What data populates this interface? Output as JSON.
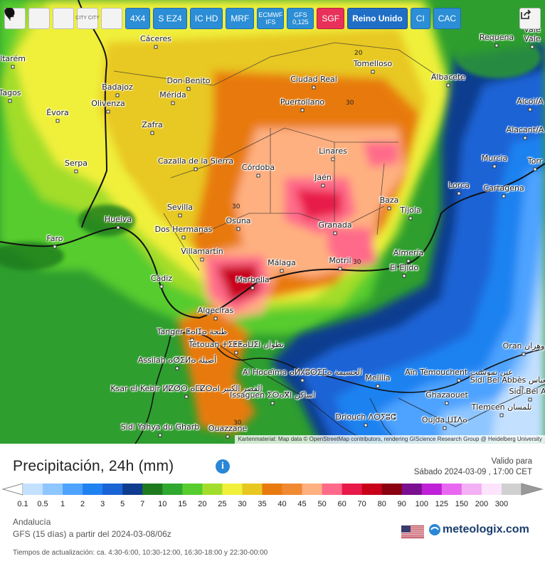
{
  "toolbar": {
    "buttons": [
      "4X4",
      "S EZ4",
      "IC HD",
      "MRF",
      "ECMWF IFS",
      "GFS 0,125",
      "SGF",
      "Reino Unido",
      "CI",
      "CAC"
    ],
    "city_button": "CITY CITY"
  },
  "map": {
    "cities": [
      {
        "name": "Cáceres"
      },
      {
        "name": "Requena"
      },
      {
        "name": "Vale"
      },
      {
        "name": "Vale"
      },
      {
        "name": "Tomelloso"
      },
      {
        "name": "Ciudad Real"
      },
      {
        "name": "Albacete"
      },
      {
        "name": "ltarém"
      },
      {
        "name": "Badajoz"
      },
      {
        "name": "Don Benito"
      },
      {
        "name": "Olivenza"
      },
      {
        "name": "Mérida"
      },
      {
        "name": "Puertollano"
      },
      {
        "name": "Alcoi/A"
      },
      {
        "name": "Évora"
      },
      {
        "name": "Zafra"
      },
      {
        "name": "Alacant/A"
      },
      {
        "name": "Linares"
      },
      {
        "name": "Serpa"
      },
      {
        "name": "Cazalla de la Sierra"
      },
      {
        "name": "Córdoba"
      },
      {
        "name": "Murcia"
      },
      {
        "name": "Torr"
      },
      {
        "name": "Jaén"
      },
      {
        "name": "Lorca"
      },
      {
        "name": "Cartagena"
      },
      {
        "name": "Baza"
      },
      {
        "name": "Sevilla"
      },
      {
        "name": "Tíjola"
      },
      {
        "name": "Huelva"
      },
      {
        "name": "Osuna"
      },
      {
        "name": "Dos Hermanas"
      },
      {
        "name": "Granada"
      },
      {
        "name": "Faro"
      },
      {
        "name": "Almería"
      },
      {
        "name": "Villamartín"
      },
      {
        "name": "Motril"
      },
      {
        "name": "Málaga"
      },
      {
        "name": "El Ejido"
      },
      {
        "name": "Cádiz"
      },
      {
        "name": "Marbella"
      },
      {
        "name": "Algeciras"
      },
      {
        "name": "Tanger ⵟⴰⵏⵊⴰ طنجة"
      },
      {
        "name": "Tétouan ⵜⵉⵟⵟⴰⵡⵉⵏ تطوان"
      },
      {
        "name": "Assilah ⴰⵚⵉⵍⴰ أصيلة"
      },
      {
        "name": "Oran وهران"
      },
      {
        "name": "Al Hoceïma ⴰⵍⵃⵓⵙⵉⵎⴰ الحسيمة"
      },
      {
        "name": "Aïn Témouchent عين تموشنت"
      },
      {
        "name": "Melilla"
      },
      {
        "name": "Sidi Bel Abbès سيدي بلعباس"
      },
      {
        "name": "Ksar el-Kebir ⵍⵇⵚⵔ ⴰⵎⵇⵔⴰⵏ القصر الكبير"
      },
      {
        "name": "Issaguen ⵉⵙⴰⴳⵏ اساكن"
      },
      {
        "name": "Ghazaouet"
      },
      {
        "name": "Tlemcen تلمسان"
      },
      {
        "name": "Driouch ⴷⵔⵢⵓⵛ"
      },
      {
        "name": "Oujda ⵡⵊⴷⴰ"
      },
      {
        "name": "Sidi Yahya du Gharb"
      },
      {
        "name": "Ouazzane"
      },
      {
        "name": "Tagos"
      },
      {
        "name": "Sidi Bel Ab"
      }
    ],
    "contour_labels": [
      "20",
      "30",
      "30",
      "30",
      "30",
      "30",
      "30",
      "30"
    ],
    "attribution": "Kartenmaterial: Map data © OpenStreetMap contributors, rendering GIScience Research Group @ Heidelberg University"
  },
  "panel": {
    "title": "Precipitación, 24h (mm)",
    "valid_label": "Valido para",
    "valid_date": "Sábado 2024-03-09 , 17:00 CET",
    "region": "Andalucía",
    "model_run": "GFS (15 días) a partir del 2024-03-08/06z",
    "update_times": "Tiempos de actualización: ca. 4:30-6:00, 10:30-12:00, 16:30-18:00 y 22:30-00:00",
    "logo": "meteologix.com"
  },
  "legend": {
    "values": [
      "0.1",
      "0.5",
      "1",
      "2",
      "3",
      "5",
      "7",
      "10",
      "15",
      "20",
      "25",
      "30",
      "35",
      "40",
      "45",
      "50",
      "60",
      "70",
      "80",
      "90",
      "100",
      "125",
      "150",
      "200",
      "300"
    ],
    "colors": [
      "#c3e0ff",
      "#8ec6ff",
      "#4da3ff",
      "#1f82f0",
      "#1a64d6",
      "#103c8f",
      "#1f7a1f",
      "#2fa82f",
      "#56cc2e",
      "#a3dd2c",
      "#f0f03a",
      "#e8c820",
      "#e87a10",
      "#f08a30",
      "#ffb080",
      "#ff6a8a",
      "#e81a4a",
      "#c8001a",
      "#8a0010",
      "#7a1090",
      "#c020d8",
      "#e868f0",
      "#f4b0f4",
      "#fde4fd",
      "#d0d0d0"
    ],
    "endcap_low": "#ffffff",
    "endcap_high": "#999999"
  }
}
